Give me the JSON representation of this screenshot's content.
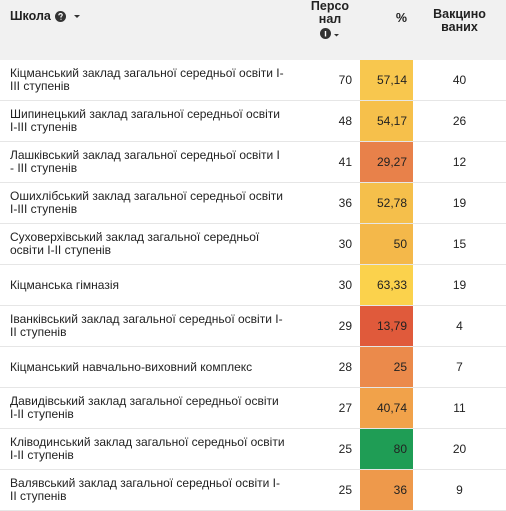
{
  "table": {
    "header": [
      "Школа",
      "Персо\nнал",
      "%",
      "Вакцино\nваних"
    ],
    "rows": [
      {
        "school": "Кіцманський заклад загальної середньої освіти І-ІІІ ступенів",
        "staff": 70,
        "percent": "57,14",
        "vaccinated": 40,
        "color": "#f8c74e"
      },
      {
        "school": "Шипинецький заклад загальної середньої освіти І-ІІІ ступенів",
        "staff": 48,
        "percent": "54,17",
        "vaccinated": 26,
        "color": "#f6c04b"
      },
      {
        "school": "Лашківський заклад загальної середньої освіти І - ІІІ ступенів",
        "staff": 41,
        "percent": "29,27",
        "vaccinated": 12,
        "color": "#e8814a"
      },
      {
        "school": "Ошихлібський заклад загальної середньої освіти І-ІІІ ступенів",
        "staff": 36,
        "percent": "52,78",
        "vaccinated": 19,
        "color": "#f5bf4b"
      },
      {
        "school": "Суховерхівський заклад загальної середньої освіти І-ІІ ступенів",
        "staff": 30,
        "percent": "50",
        "vaccinated": 15,
        "color": "#f4b84a"
      },
      {
        "school": "Кіцманська гімназія",
        "staff": 30,
        "percent": "63,33",
        "vaccinated": 19,
        "color": "#fbd24c"
      },
      {
        "school": "Іванківський заклад загальної середньої освіти І-ІІ ступенів",
        "staff": 29,
        "percent": "13,79",
        "vaccinated": 4,
        "color": "#e05a3b"
      },
      {
        "school": "Кіцманський навчально-виховний комплекс",
        "staff": 28,
        "percent": "25",
        "vaccinated": 7,
        "color": "#eb8a4b"
      },
      {
        "school": "Давидівський заклад загальної середньої освіти І-ІІ ступенів",
        "staff": 27,
        "percent": "40,74",
        "vaccinated": 11,
        "color": "#f1a24a"
      },
      {
        "school": "Кліводинський заклад загальної середньої освіти І-ІІ ступенів",
        "staff": 25,
        "percent": "80",
        "vaccinated": 20,
        "color": "#1f9d55"
      },
      {
        "school": "Валявський заклад загальної середньої освіти І-ІІ ступенів",
        "staff": 25,
        "percent": "36",
        "vaccinated": 9,
        "color": "#ee994b"
      }
    ]
  }
}
